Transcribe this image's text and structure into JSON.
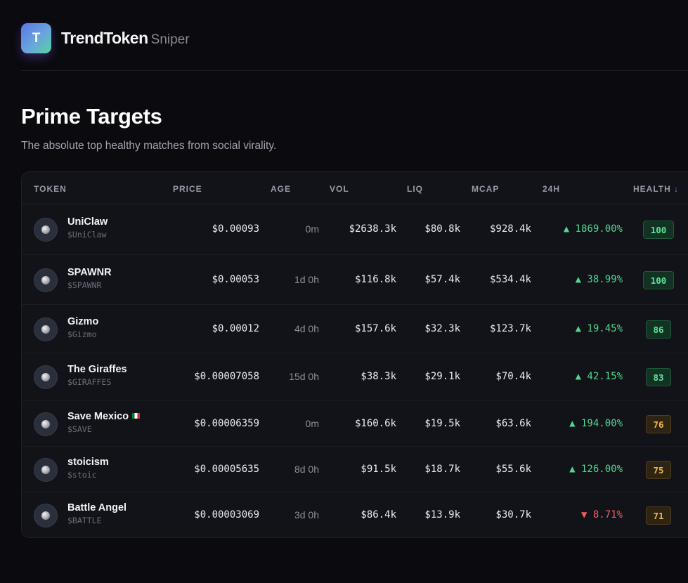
{
  "app": {
    "logo_letter": "T",
    "name": "TrendToken",
    "subtitle": "Sniper"
  },
  "page": {
    "title": "Prime Targets",
    "subtitle": "The absolute top healthy matches from social virality."
  },
  "colors": {
    "accent": "#8f6af2",
    "positive": "#4fd98a",
    "negative": "#f0605e",
    "health_high": "#5ee39a",
    "health_mid": "#f2b64a"
  },
  "table": {
    "headers": {
      "token": "TOKEN",
      "price": "PRICE",
      "age": "AGE",
      "vol": "VOL",
      "liq": "LIQ",
      "mcap": "MCAP",
      "change": "24H",
      "health": "HEALTH",
      "health_sort_icon": "↓"
    },
    "rows": [
      {
        "name": "UniClaw",
        "symbol": "$UniClaw",
        "price": "$0.00093",
        "age": "0m",
        "vol": "$2638.3k",
        "liq": "$80.8k",
        "mcap": "$928.4k",
        "change": "▲ 1869.00%",
        "direction": "up",
        "health": "100",
        "health_level": "green"
      },
      {
        "name": "SPAWNR",
        "symbol": "$SPAWNR",
        "price": "$0.00053",
        "age": "1d 0h",
        "vol": "$116.8k",
        "liq": "$57.4k",
        "mcap": "$534.4k",
        "change": "▲ 38.99%",
        "direction": "up",
        "health": "100",
        "health_level": "green"
      },
      {
        "name": "Gizmo",
        "symbol": "$Gizmo",
        "price": "$0.00012",
        "age": "4d 0h",
        "vol": "$157.6k",
        "liq": "$32.3k",
        "mcap": "$123.7k",
        "change": "▲ 19.45%",
        "direction": "up",
        "health": "86",
        "health_level": "green"
      },
      {
        "name": "The Giraffes",
        "symbol": "$GIRAFFES",
        "price": "$0.00007058",
        "age": "15d 0h",
        "vol": "$38.3k",
        "liq": "$29.1k",
        "mcap": "$70.4k",
        "change": "▲ 42.15%",
        "direction": "up",
        "health": "83",
        "health_level": "green"
      },
      {
        "name": "Save Mexico",
        "flag_icon": "mexico-flag-icon",
        "symbol": "$SAVE",
        "price": "$0.00006359",
        "age": "0m",
        "vol": "$160.6k",
        "liq": "$19.5k",
        "mcap": "$63.6k",
        "change": "▲ 194.00%",
        "direction": "up",
        "health": "76",
        "health_level": "amber"
      },
      {
        "name": "stoicism",
        "symbol": "$stoic",
        "price": "$0.00005635",
        "age": "8d 0h",
        "vol": "$91.5k",
        "liq": "$18.7k",
        "mcap": "$55.6k",
        "change": "▲ 126.00%",
        "direction": "up",
        "health": "75",
        "health_level": "amber"
      },
      {
        "name": "Battle Angel",
        "symbol": "$BATTLE",
        "price": "$0.00003069",
        "age": "3d 0h",
        "vol": "$86.4k",
        "liq": "$13.9k",
        "mcap": "$30.7k",
        "change": "▼ 8.71%",
        "direction": "down",
        "health": "71",
        "health_level": "amber"
      }
    ]
  }
}
